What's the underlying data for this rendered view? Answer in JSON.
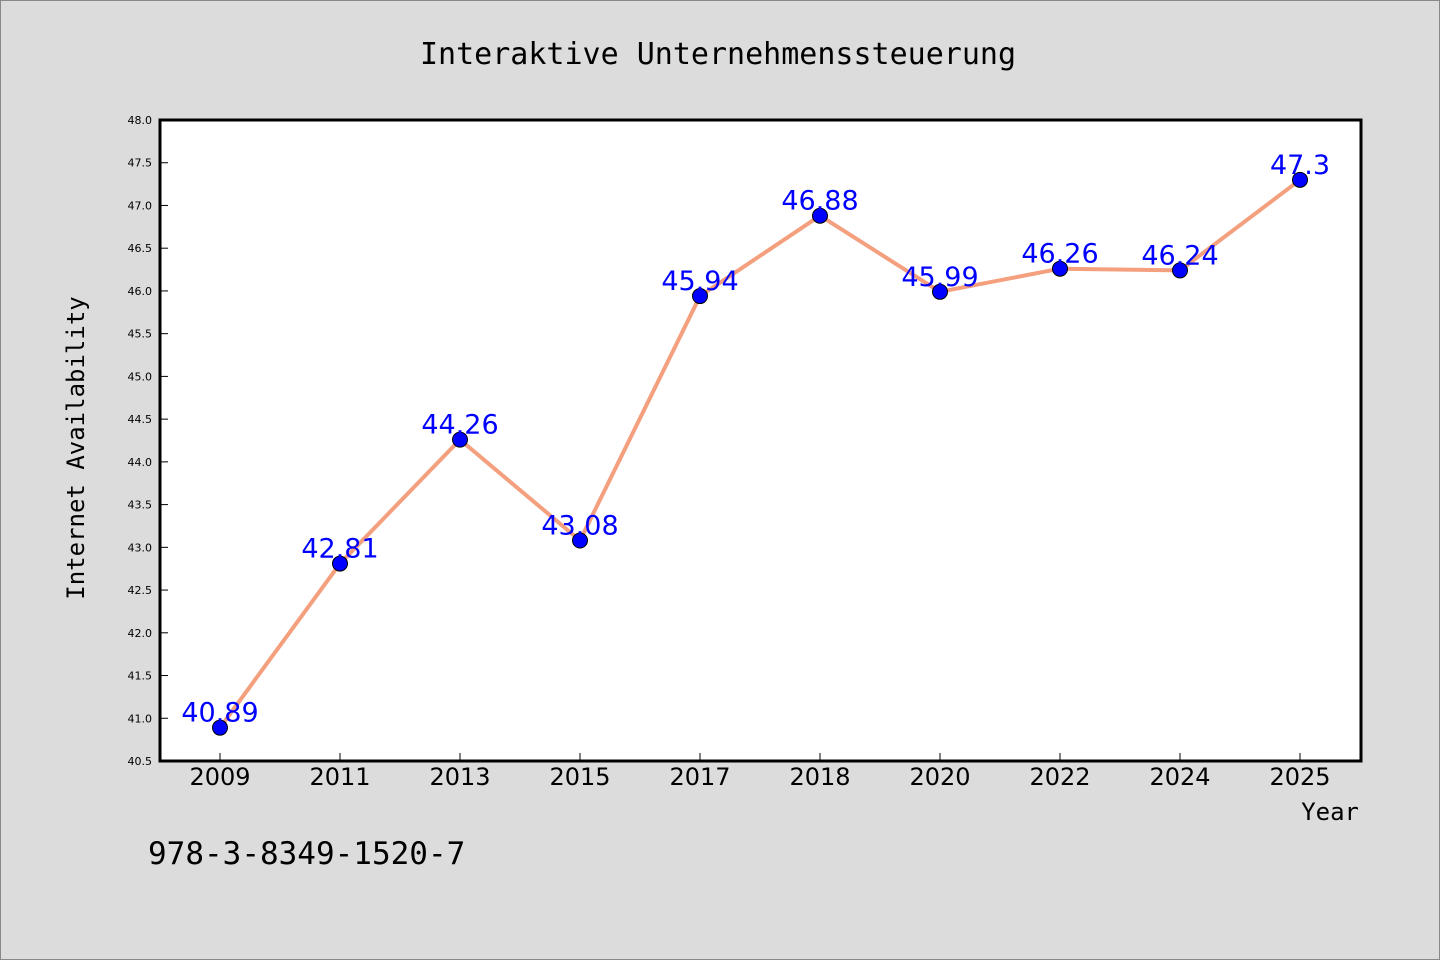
{
  "chart_data": {
    "type": "line",
    "title": "Interaktive Unternehmenssteuerung",
    "xlabel": "Year",
    "ylabel": "Internet Availability",
    "categories": [
      "2009",
      "2011",
      "2013",
      "2015",
      "2017",
      "2018",
      "2020",
      "2022",
      "2024",
      "2025"
    ],
    "series": [
      {
        "values": [
          40.89,
          42.81,
          44.26,
          43.08,
          45.94,
          46.88,
          45.99,
          46.26,
          46.24,
          47.3
        ],
        "labels": [
          "40.89",
          "42.81",
          "44.26",
          "43.08",
          "45.94",
          "46.88",
          "45.99",
          "46.26",
          "46.24",
          "47.3"
        ]
      }
    ],
    "ylim": [
      40.5,
      48.0
    ],
    "yticks": [
      "40.5",
      "41.0",
      "41.5",
      "42.0",
      "42.5",
      "43.0",
      "43.5",
      "44.0",
      "44.5",
      "45.0",
      "45.5",
      "46.0",
      "46.5",
      "47.0",
      "47.5",
      "48.0"
    ],
    "grid": false,
    "legend": "none",
    "colors": {
      "line": "#f4a07e",
      "marker": "#0000ff",
      "data_label": "#0000ff",
      "background": "#dcdcdc",
      "plot_background": "#ffffff"
    }
  },
  "footer": {
    "isbn": "978-3-8349-1520-7"
  }
}
